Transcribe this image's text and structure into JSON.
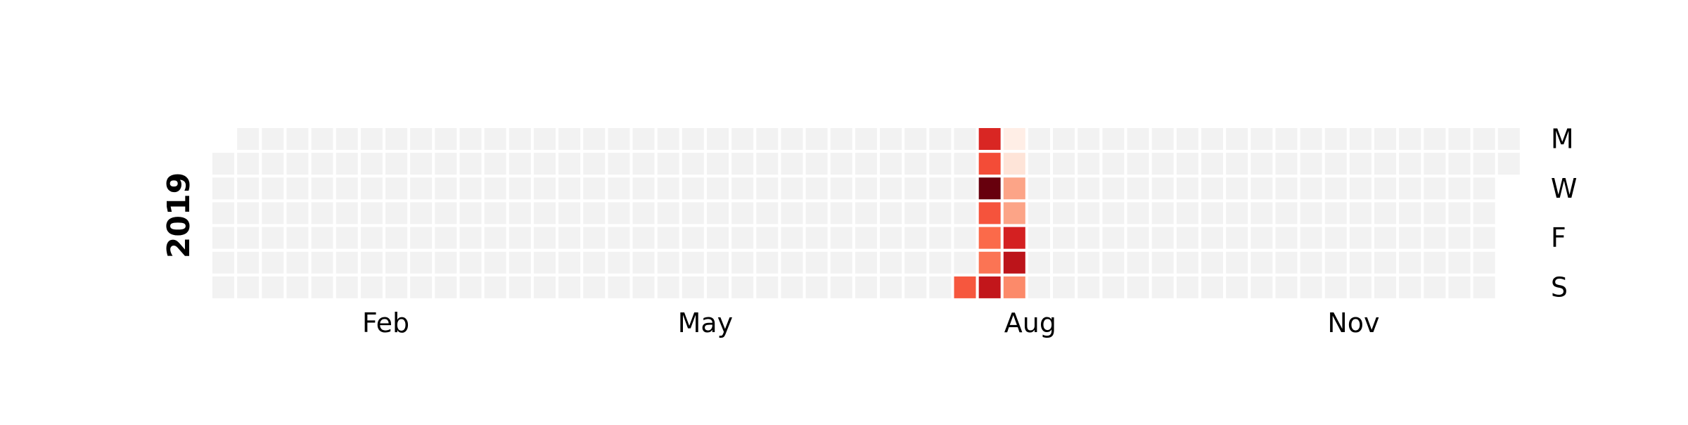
{
  "chart_data": {
    "type": "heatmap",
    "year": "2019",
    "colormap": "Reds",
    "empty_color": "#f2f2f2",
    "x_tick_labels": [
      "Feb",
      "May",
      "Aug",
      "Nov"
    ],
    "y_tick_labels": [
      "M",
      "W",
      "F",
      "S"
    ],
    "row_order": [
      "Mon",
      "Tue",
      "Wed",
      "Thu",
      "Fri",
      "Sat",
      "Sun"
    ],
    "date_range": [
      "2019-01-01",
      "2019-12-31"
    ],
    "nonzero_days": [
      {
        "date": "2019-08-04",
        "value": 0.55
      },
      {
        "date": "2019-08-05",
        "value": 0.7
      },
      {
        "date": "2019-08-06",
        "value": 0.58
      },
      {
        "date": "2019-08-07",
        "value": 1.0
      },
      {
        "date": "2019-08-08",
        "value": 0.56
      },
      {
        "date": "2019-08-09",
        "value": 0.5
      },
      {
        "date": "2019-08-10",
        "value": 0.47
      },
      {
        "date": "2019-08-11",
        "value": 0.78
      },
      {
        "date": "2019-08-12",
        "value": 0.04
      },
      {
        "date": "2019-08-13",
        "value": 0.1
      },
      {
        "date": "2019-08-14",
        "value": 0.32
      },
      {
        "date": "2019-08-15",
        "value": 0.32
      },
      {
        "date": "2019-08-16",
        "value": 0.72
      },
      {
        "date": "2019-08-17",
        "value": 0.8
      },
      {
        "date": "2019-08-18",
        "value": 0.4
      }
    ]
  }
}
